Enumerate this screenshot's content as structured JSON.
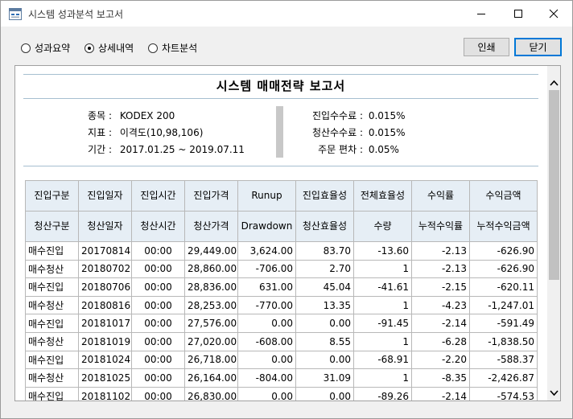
{
  "window": {
    "title": "시스템 성과분석 보고서"
  },
  "toolbar": {
    "radios": [
      {
        "label": "성과요약",
        "selected": false
      },
      {
        "label": "상세내역",
        "selected": true
      },
      {
        "label": "차트분석",
        "selected": false
      }
    ],
    "print_label": "인쇄",
    "close_label": "닫기"
  },
  "report": {
    "title": "시스템 매매전략 보고서",
    "left_info": [
      {
        "label": "종목 :",
        "value": "KODEX 200"
      },
      {
        "label": "지표 :",
        "value": "이격도(10,98,106)"
      },
      {
        "label": "기간 :",
        "value": "2017.01.25 ~ 2019.07.11"
      }
    ],
    "right_info": [
      {
        "label": "진입수수료 :",
        "value": "0.015%"
      },
      {
        "label": "청산수수료 :",
        "value": "0.015%"
      },
      {
        "label": "주문 편차 :",
        "value": "0.05%"
      }
    ]
  },
  "table": {
    "headers_top": [
      "진입구분",
      "진입일자",
      "진입시간",
      "진입가격",
      "Runup",
      "진입효율성",
      "전체효율성",
      "수익률",
      "수익금액"
    ],
    "headers_bottom": [
      "청산구분",
      "청산일자",
      "청산시간",
      "청산가격",
      "Drawdown",
      "청산효율성",
      "수량",
      "누적수익률",
      "누적수익금액"
    ],
    "rows": [
      [
        "매수진입",
        "20170814",
        "00:00",
        "29,449.00",
        "3,624.00",
        "83.70",
        "-13.60",
        "-2.13",
        "-626.90"
      ],
      [
        "매수청산",
        "20180702",
        "00:00",
        "28,860.00",
        "-706.00",
        "2.70",
        "1",
        "-2.13",
        "-626.90"
      ],
      [
        "매수진입",
        "20180706",
        "00:00",
        "28,836.00",
        "631.00",
        "45.04",
        "-41.61",
        "-2.15",
        "-620.11"
      ],
      [
        "매수청산",
        "20180816",
        "00:00",
        "28,253.00",
        "-770.00",
        "13.35",
        "1",
        "-4.23",
        "-1,247.01"
      ],
      [
        "매수진입",
        "20181017",
        "00:00",
        "27,576.00",
        "0.00",
        "0.00",
        "-91.45",
        "-2.14",
        "-591.49"
      ],
      [
        "매수청산",
        "20181019",
        "00:00",
        "27,020.00",
        "-608.00",
        "8.55",
        "1",
        "-6.28",
        "-1,838.50"
      ],
      [
        "매수진입",
        "20181024",
        "00:00",
        "26,718.00",
        "0.00",
        "0.00",
        "-68.91",
        "-2.20",
        "-588.37"
      ],
      [
        "매수청산",
        "20181025",
        "00:00",
        "26,164.00",
        "-804.00",
        "31.09",
        "1",
        "-8.35",
        "-2,426.87"
      ],
      [
        "매수진입",
        "20181102",
        "00:00",
        "26,830.00",
        "0.00",
        "0.00",
        "-89.26",
        "-2.14",
        "-574.53"
      ]
    ]
  },
  "colors": {
    "header_bg": "#e6eef5",
    "accent": "#0078d7",
    "divider": "#a6bfd0"
  },
  "icons": [
    "app-icon",
    "minimize-icon",
    "maximize-icon",
    "close-icon",
    "scroll-up-icon",
    "scroll-down-icon"
  ]
}
